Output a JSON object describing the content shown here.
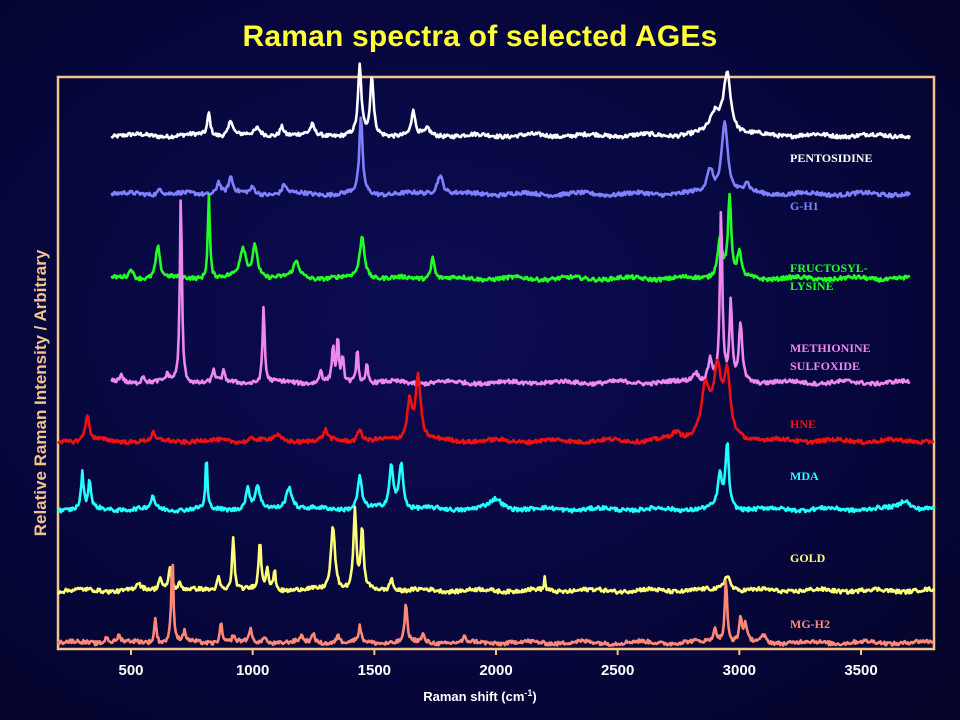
{
  "colors": {
    "background": "#08083f",
    "frame": "#f2c48c",
    "title": "#ffff33",
    "axis_text": "#ffffff",
    "ylabel": "#f2c48c"
  },
  "chart_data": {
    "type": "line",
    "title": "Raman spectra of selected AGEs",
    "xlabel": "Raman shift (cm-1)",
    "xlabel_parts": {
      "main": "Raman shift (cm",
      "sup": "-1",
      "end": ")"
    },
    "ylabel": "Relative Raman Intensity / Arbitrary",
    "xlim": [
      200,
      3800
    ],
    "ylim": [
      0,
      8.8
    ],
    "xticks": [
      500,
      1000,
      1500,
      2000,
      2500,
      3000,
      3500
    ],
    "xtick_labels": [
      "500",
      "1000",
      "1500",
      "2000",
      "2500",
      "3000",
      "3500"
    ],
    "grid": false,
    "legend": "labels at right of each trace",
    "series": [
      {
        "name": "PENTOSIDINE",
        "label_lines": [
          "PENTOSIDINE"
        ],
        "color": "#ffffff",
        "offset": 7.9,
        "xrange": [
          420,
          3700
        ],
        "peaks": [
          [
            820,
            0.35,
            7
          ],
          [
            910,
            0.25,
            10
          ],
          [
            1020,
            0.1,
            12
          ],
          [
            1120,
            0.15,
            10
          ],
          [
            1245,
            0.15,
            10
          ],
          [
            1440,
            1.05,
            8
          ],
          [
            1490,
            0.9,
            8
          ],
          [
            1660,
            0.4,
            8
          ],
          [
            1720,
            0.1,
            10
          ],
          [
            2900,
            0.3,
            25
          ],
          [
            2950,
            0.95,
            18
          ]
        ]
      },
      {
        "name": "G-H1",
        "label_lines": [
          "G-H1"
        ],
        "color": "#8080ff",
        "offset": 7.0,
        "xrange": [
          420,
          3700
        ],
        "peaks": [
          [
            620,
            0.1,
            10
          ],
          [
            860,
            0.2,
            10
          ],
          [
            910,
            0.25,
            10
          ],
          [
            1000,
            0.1,
            10
          ],
          [
            1130,
            0.15,
            10
          ],
          [
            1445,
            1.15,
            8
          ],
          [
            1770,
            0.3,
            15
          ],
          [
            2880,
            0.35,
            15
          ],
          [
            2940,
            1.1,
            15
          ],
          [
            3030,
            0.15,
            12
          ]
        ]
      },
      {
        "name": "FRUCTOSYL-LYSINE",
        "label_lines": [
          "FRUCTOSYL-",
          "LYSINE"
        ],
        "color": "#22ff22",
        "offset": 5.7,
        "xrange": [
          420,
          3700
        ],
        "peaks": [
          [
            500,
            0.15,
            8
          ],
          [
            610,
            0.5,
            10
          ],
          [
            820,
            1.3,
            5
          ],
          [
            960,
            0.45,
            15
          ],
          [
            1010,
            0.5,
            12
          ],
          [
            1180,
            0.25,
            15
          ],
          [
            1450,
            0.65,
            12
          ],
          [
            1740,
            0.35,
            8
          ],
          [
            2920,
            0.6,
            12
          ],
          [
            2960,
            1.2,
            8
          ],
          [
            3000,
            0.4,
            8
          ]
        ]
      },
      {
        "name": "METHIONINE SULFOXIDE",
        "label_lines": [
          "METHIONINE",
          "SULFOXIDE"
        ],
        "color": "#ee88ee",
        "offset": 4.1,
        "xrange": [
          420,
          3700
        ],
        "peaks": [
          [
            460,
            0.12,
            8
          ],
          [
            550,
            0.12,
            8
          ],
          [
            650,
            0.1,
            8
          ],
          [
            705,
            2.9,
            5
          ],
          [
            840,
            0.2,
            6
          ],
          [
            880,
            0.15,
            6
          ],
          [
            1045,
            1.2,
            5
          ],
          [
            1280,
            0.2,
            6
          ],
          [
            1330,
            0.55,
            5
          ],
          [
            1350,
            0.65,
            5
          ],
          [
            1370,
            0.35,
            5
          ],
          [
            1430,
            0.55,
            5
          ],
          [
            1470,
            0.3,
            5
          ],
          [
            2820,
            0.15,
            15
          ],
          [
            2880,
            0.35,
            10
          ],
          [
            2925,
            2.6,
            6
          ],
          [
            2965,
            1.2,
            6
          ],
          [
            3005,
            0.9,
            8
          ]
        ]
      },
      {
        "name": "HNE",
        "label_lines": [
          "HNE"
        ],
        "color": "#ee1111",
        "offset": 3.2,
        "xrange": [
          200,
          3800
        ],
        "peaks": [
          [
            320,
            0.4,
            10
          ],
          [
            590,
            0.15,
            5
          ],
          [
            1000,
            0.05,
            15
          ],
          [
            1100,
            0.08,
            15
          ],
          [
            1300,
            0.15,
            10
          ],
          [
            1440,
            0.2,
            10
          ],
          [
            1645,
            0.6,
            12
          ],
          [
            1680,
            1.0,
            12
          ],
          [
            2740,
            0.1,
            20
          ],
          [
            2860,
            0.8,
            20
          ],
          [
            2910,
            1.0,
            20
          ],
          [
            2950,
            0.9,
            15
          ]
        ]
      },
      {
        "name": "MDA",
        "label_lines": [
          "MDA"
        ],
        "color": "#22ffff",
        "offset": 2.15,
        "xrange": [
          200,
          3800
        ],
        "peaks": [
          [
            300,
            0.55,
            6
          ],
          [
            330,
            0.45,
            6
          ],
          [
            590,
            0.2,
            8
          ],
          [
            810,
            0.85,
            4
          ],
          [
            980,
            0.3,
            10
          ],
          [
            1020,
            0.35,
            10
          ],
          [
            1150,
            0.35,
            15
          ],
          [
            1440,
            0.5,
            10
          ],
          [
            1570,
            0.65,
            10
          ],
          [
            1610,
            0.7,
            10
          ],
          [
            2000,
            0.15,
            30
          ],
          [
            2920,
            0.5,
            10
          ],
          [
            2950,
            1.0,
            8
          ],
          [
            3680,
            0.15,
            25
          ]
        ]
      },
      {
        "name": "GOLD",
        "label_lines": [
          "GOLD"
        ],
        "color": "#ffff77",
        "offset": 0.9,
        "xrange": [
          200,
          3800
        ],
        "peaks": [
          [
            530,
            0.1,
            10
          ],
          [
            620,
            0.2,
            8
          ],
          [
            660,
            0.35,
            8
          ],
          [
            700,
            0.1,
            8
          ],
          [
            860,
            0.2,
            8
          ],
          [
            920,
            0.8,
            6
          ],
          [
            1030,
            0.75,
            6
          ],
          [
            1060,
            0.35,
            6
          ],
          [
            1090,
            0.3,
            6
          ],
          [
            1330,
            1.0,
            10
          ],
          [
            1420,
            1.2,
            7
          ],
          [
            1450,
            0.9,
            7
          ],
          [
            1570,
            0.2,
            8
          ],
          [
            2200,
            0.2,
            3
          ],
          [
            2950,
            0.25,
            15
          ]
        ]
      },
      {
        "name": "MG-H2",
        "label_lines": [
          "MG-H2"
        ],
        "color": "#ff8877",
        "offset": 0.1,
        "xrange": [
          200,
          3800
        ],
        "peaks": [
          [
            400,
            0.1,
            8
          ],
          [
            450,
            0.1,
            8
          ],
          [
            600,
            0.4,
            5
          ],
          [
            670,
            1.35,
            5
          ],
          [
            720,
            0.15,
            6
          ],
          [
            870,
            0.3,
            6
          ],
          [
            920,
            0.1,
            6
          ],
          [
            990,
            0.2,
            6
          ],
          [
            1050,
            0.12,
            6
          ],
          [
            1200,
            0.1,
            6
          ],
          [
            1250,
            0.15,
            6
          ],
          [
            1350,
            0.15,
            6
          ],
          [
            1440,
            0.25,
            6
          ],
          [
            1630,
            0.6,
            6
          ],
          [
            1700,
            0.12,
            6
          ],
          [
            1870,
            0.08,
            4
          ],
          [
            2900,
            0.2,
            10
          ],
          [
            2945,
            0.95,
            6
          ],
          [
            3005,
            0.4,
            6
          ],
          [
            3025,
            0.3,
            6
          ],
          [
            3100,
            0.1,
            10
          ]
        ]
      }
    ]
  }
}
